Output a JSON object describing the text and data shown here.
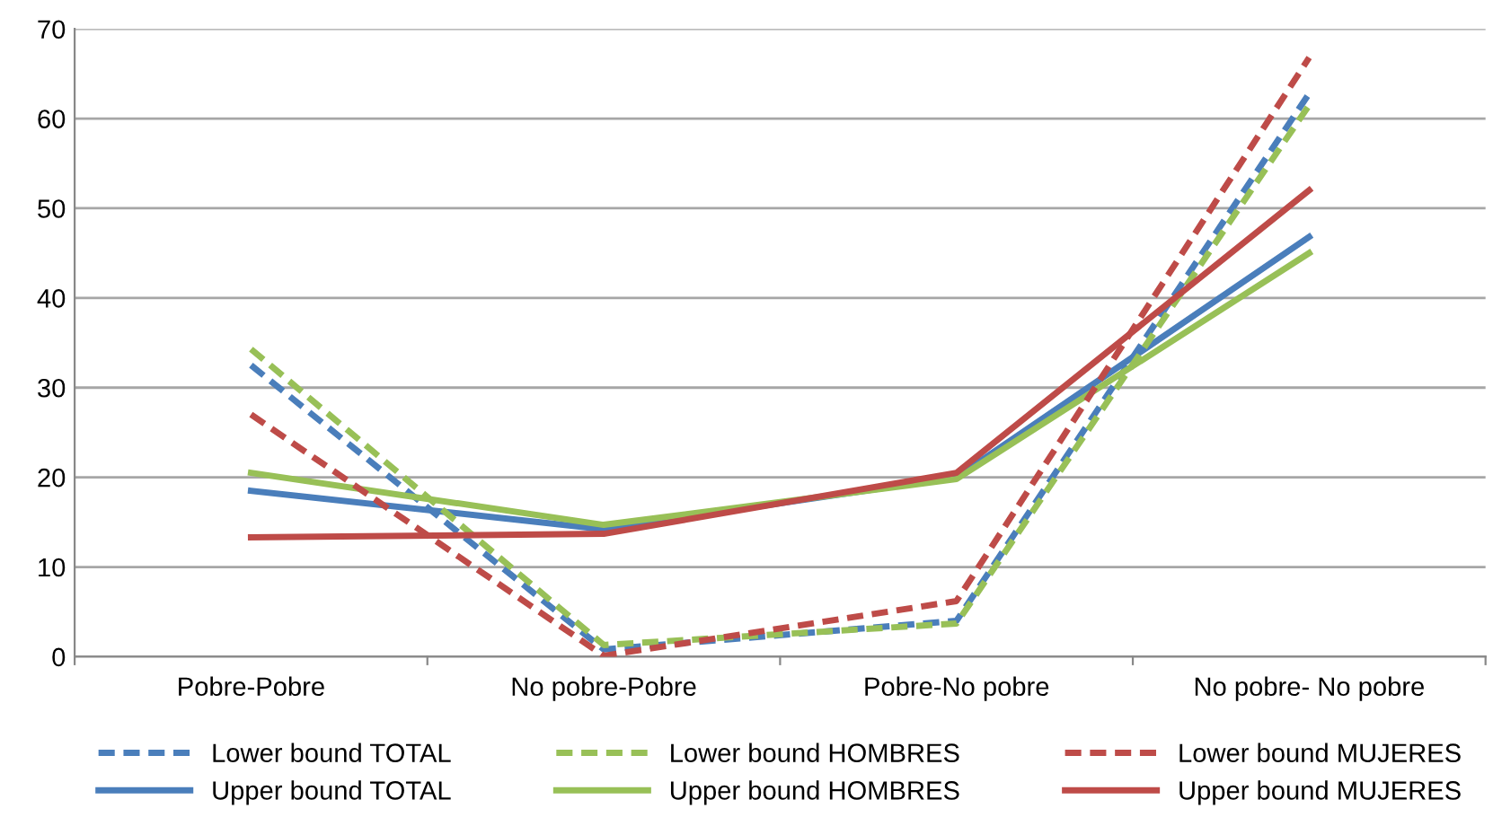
{
  "chart_data": {
    "type": "line",
    "categories": [
      "Pobre-Pobre",
      "No pobre-Pobre",
      "Pobre-No pobre",
      "No pobre- No pobre"
    ],
    "series": [
      {
        "name": "Lower bound TOTAL",
        "color": "#4a7ebb",
        "line_style": "dashed",
        "values": [
          32.5,
          0.8,
          4.0,
          62.8
        ]
      },
      {
        "name": "Upper bound TOTAL",
        "color": "#4a7ebb",
        "line_style": "solid",
        "values": [
          18.5,
          14.2,
          20.0,
          46.8
        ]
      },
      {
        "name": "Lower bound HOMBRES",
        "color": "#98c057",
        "line_style": "dashed",
        "values": [
          34.3,
          1.3,
          3.7,
          61.5
        ]
      },
      {
        "name": "Upper bound HOMBRES",
        "color": "#98c057",
        "line_style": "solid",
        "values": [
          20.5,
          14.7,
          19.8,
          45.0
        ]
      },
      {
        "name": "Lower bound MUJERES",
        "color": "#be4b48",
        "line_style": "dashed",
        "values": [
          27.0,
          0.1,
          6.2,
          66.8
        ]
      },
      {
        "name": "Upper bound MUJERES",
        "color": "#be4b48",
        "line_style": "solid",
        "values": [
          13.3,
          13.7,
          20.5,
          52.0
        ]
      }
    ],
    "ylim": [
      0,
      70
    ],
    "yticks": [
      0,
      10,
      20,
      30,
      40,
      50,
      60,
      70
    ],
    "grid": "y",
    "legend": "bottom",
    "marker": "none"
  }
}
